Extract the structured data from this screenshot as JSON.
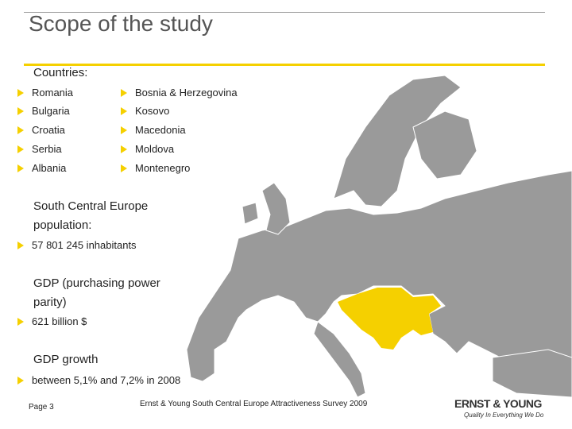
{
  "header": {
    "title": "Scope of the study"
  },
  "countries": {
    "heading": "Countries:",
    "column1": [
      "Romania",
      "Bulgaria",
      "Croatia",
      "Serbia",
      "Albania"
    ],
    "column2": [
      "Bosnia & Herzegovina",
      "Kosovo",
      "Macedonia",
      "Moldova",
      "Montenegro"
    ]
  },
  "population": {
    "heading": "South Central Europe population:",
    "item": "57 801 245 inhabitants"
  },
  "gdp": {
    "heading": "GDP (purchasing power parity)",
    "item": "621 billion $"
  },
  "growth": {
    "heading": "GDP growth",
    "item": "between 5,1% and 7,2% in 2008"
  },
  "footer": {
    "page": "Page 3",
    "source": "Ernst & Young South Central Europe Attractiveness Survey 2009",
    "logo": "ERNST & YOUNG",
    "tagline": "Quality In Everything We Do"
  }
}
